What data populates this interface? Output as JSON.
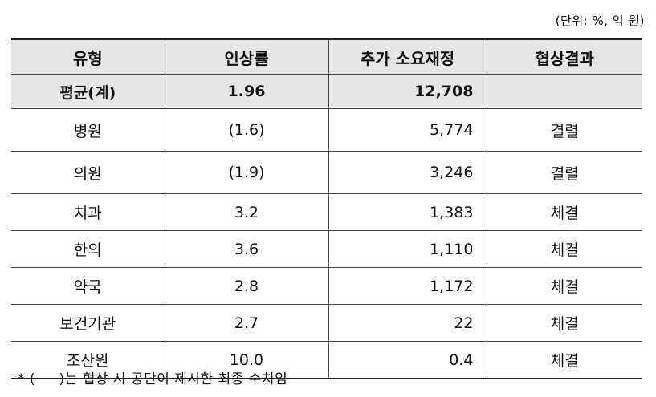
{
  "unit_note": "(단위: %, 억 원)",
  "headers": [
    "유형",
    "인상률",
    "추가 소요재정",
    "협상결과"
  ],
  "average": {
    "type": "평균(계)",
    "rate": "1.96",
    "budget": "12,708",
    "result": ""
  },
  "rows": [
    {
      "type": "병원",
      "rate": "(1.6)",
      "budget": "5,774",
      "result": "결렬"
    },
    {
      "type": "의원",
      "rate": "(1.9)",
      "budget": "3,246",
      "result": "결렬"
    },
    {
      "type": "치과",
      "rate": "3.2",
      "budget": "1,383",
      "result": "체결"
    },
    {
      "type": "한의",
      "rate": "3.6",
      "budget": "1,110",
      "result": "체결"
    },
    {
      "type": "약국",
      "rate": "2.8",
      "budget": "1,172",
      "result": "체결"
    },
    {
      "type": "보건기관",
      "rate": "2.7",
      "budget": "22",
      "result": "체결"
    },
    {
      "type": "조산원",
      "rate": "10.0",
      "budget": "0.4",
      "result": "체결"
    }
  ],
  "footnote": "* (     )는 협상 시 공단이 제시한 최종 수치임"
}
